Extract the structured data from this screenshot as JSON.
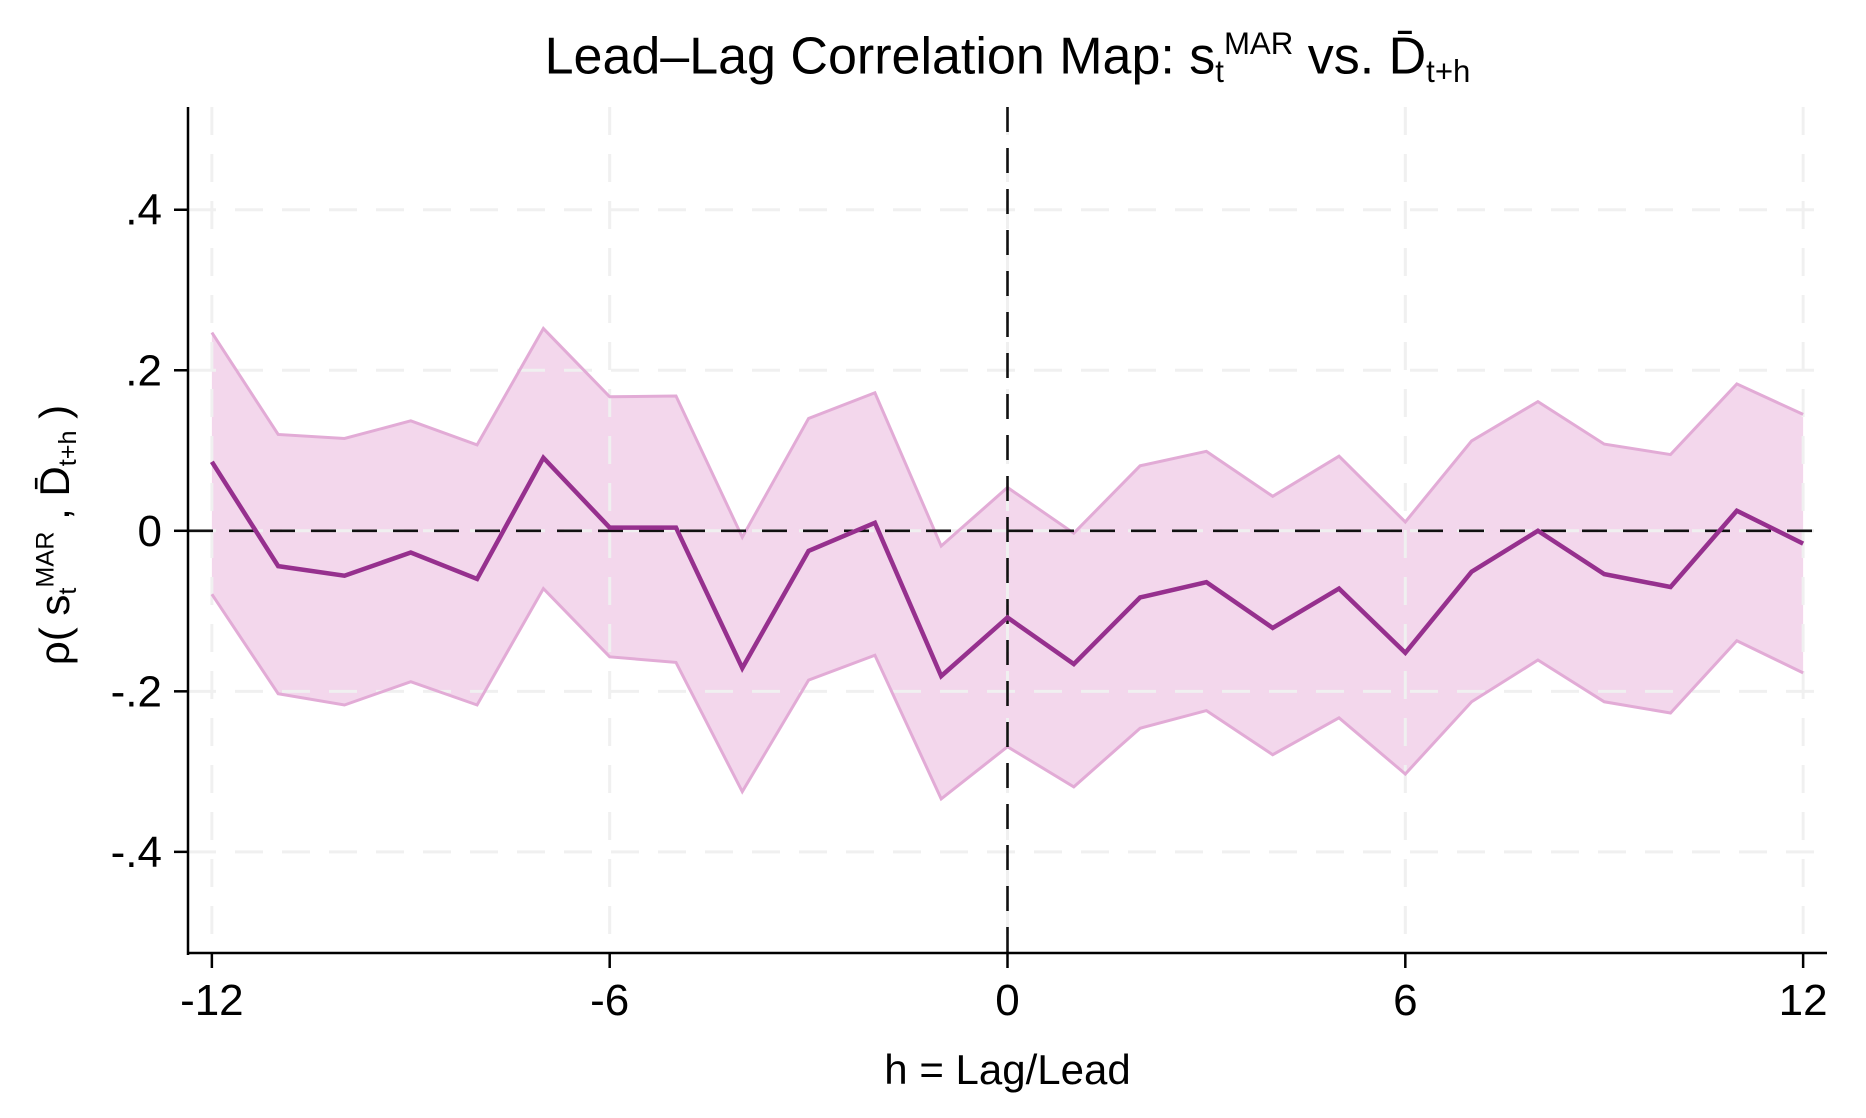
{
  "title": {
    "prefix": "Lead–Lag Correlation Map: s",
    "sub1": "t",
    "sup1": "MAR",
    "mid": " vs. D̄",
    "sub2": "t+h"
  },
  "ylabel": {
    "p1": "ρ( s",
    "sub1": "t",
    "sup1": "MAR",
    "p2": " , D̄",
    "sub2": "t+h",
    "p3": " )"
  },
  "xlabel": "h = Lag/Lead",
  "chart_data": {
    "type": "line",
    "x": [
      -12,
      -11,
      -10,
      -9,
      -8,
      -7,
      -6,
      -5,
      -4,
      -3,
      -2,
      -1,
      0,
      1,
      2,
      3,
      4,
      5,
      6,
      7,
      8,
      9,
      10,
      11,
      12
    ],
    "series": [
      {
        "name": "correlation",
        "values": [
          0.086,
          -0.044,
          -0.056,
          -0.027,
          -0.06,
          0.091,
          0.004,
          0.004,
          -0.171,
          -0.025,
          0.01,
          -0.181,
          -0.108,
          -0.166,
          -0.083,
          -0.064,
          -0.121,
          -0.072,
          -0.152,
          -0.051,
          0.0,
          -0.054,
          -0.07,
          0.025,
          -0.016
        ]
      },
      {
        "name": "ci_upper",
        "values": [
          0.247,
          0.12,
          0.115,
          0.137,
          0.107,
          0.252,
          0.167,
          0.168,
          -0.008,
          0.14,
          0.172,
          -0.019,
          0.054,
          -0.003,
          0.081,
          0.099,
          0.043,
          0.093,
          0.011,
          0.112,
          0.161,
          0.108,
          0.095,
          0.183,
          0.145
        ]
      },
      {
        "name": "ci_lower",
        "values": [
          -0.079,
          -0.203,
          -0.217,
          -0.188,
          -0.217,
          -0.072,
          -0.157,
          -0.164,
          -0.325,
          -0.186,
          -0.155,
          -0.334,
          -0.269,
          -0.319,
          -0.246,
          -0.224,
          -0.279,
          -0.233,
          -0.303,
          -0.213,
          -0.161,
          -0.213,
          -0.227,
          -0.137,
          -0.177
        ]
      }
    ],
    "title": "Lead–Lag Correlation Map: s_t^MAR vs. D̄_(t+h)",
    "xlabel": "h = Lag/Lead",
    "ylabel": "ρ( s_t^MAR , D̄_(t+h) )",
    "xlim": [
      -12.36,
      12.36
    ],
    "ylim": [
      -0.526,
      0.528
    ],
    "xticks": [
      -12,
      -6,
      0,
      6,
      12
    ],
    "xtick_labels": [
      "-12",
      "-6",
      "0",
      "6",
      "12"
    ],
    "yticks": [
      0.4,
      0.2,
      0,
      -0.2,
      -0.4
    ],
    "ytick_labels": [
      ".4",
      ".2",
      "0",
      "-.2",
      "-.4"
    ],
    "grid": true,
    "legend_position": "none",
    "reference_lines": {
      "horizontal_at": 0,
      "vertical_at": 0
    },
    "colors": {
      "line": "#96308e",
      "band_fill": "#f3d7ec",
      "band_border": "#e2abd6",
      "grid": "#f0f0f0",
      "reference": "#111111",
      "axis": "#000000"
    }
  }
}
